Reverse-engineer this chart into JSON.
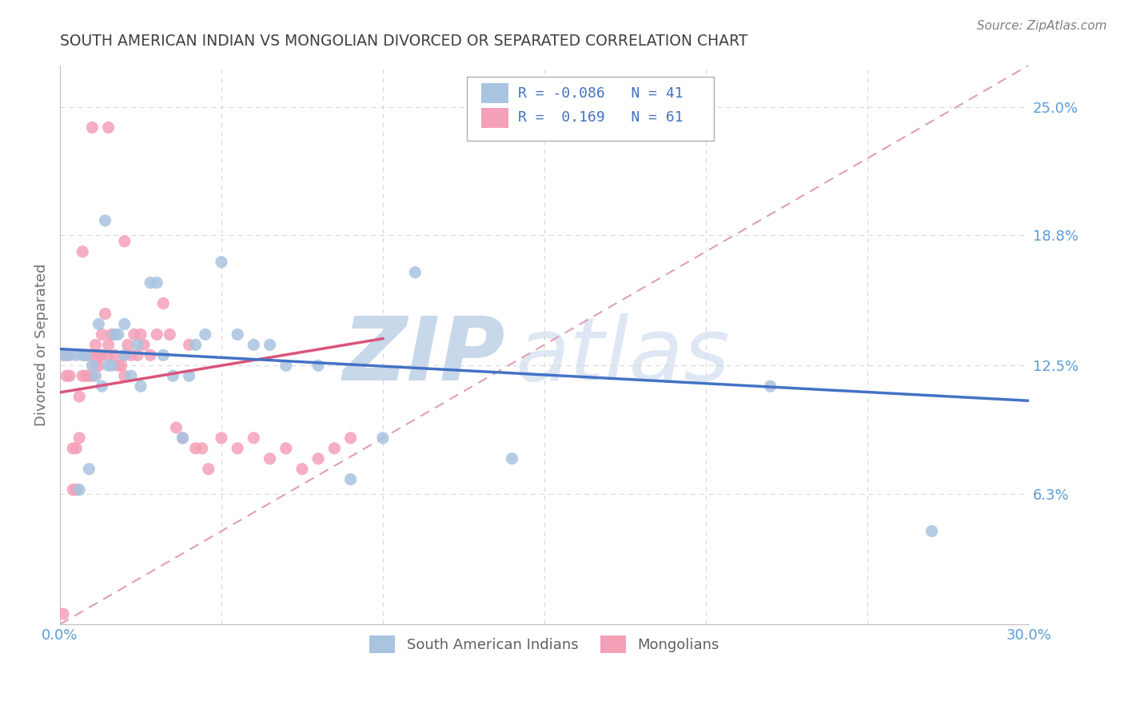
{
  "title": "SOUTH AMERICAN INDIAN VS MONGOLIAN DIVORCED OR SEPARATED CORRELATION CHART",
  "source": "Source: ZipAtlas.com",
  "ylabel": "Divorced or Separated",
  "xlim": [
    0.0,
    0.3
  ],
  "ylim": [
    0.0,
    0.27
  ],
  "xtick_vals": [
    0.0,
    0.05,
    0.1,
    0.15,
    0.2,
    0.25,
    0.3
  ],
  "xtick_labels": [
    "0.0%",
    "",
    "",
    "",
    "",
    "",
    "30.0%"
  ],
  "ytick_vals_right": [
    0.25,
    0.188,
    0.125,
    0.063
  ],
  "ytick_labels_right": [
    "25.0%",
    "18.8%",
    "12.5%",
    "6.3%"
  ],
  "blue_R": "-0.086",
  "blue_N": "41",
  "pink_R": "0.169",
  "pink_N": "61",
  "blue_color": "#a8c4e0",
  "pink_color": "#f4a0b8",
  "blue_line_color": "#4472c4",
  "pink_line_color": "#d9547a",
  "dashed_line_color": "#e0a0b0",
  "title_color": "#404040",
  "axis_color": "#5b9bd5",
  "legend_text_color": "#4472c4",
  "blue_scatter_x": [
    0.001,
    0.003,
    0.005,
    0.006,
    0.007,
    0.008,
    0.009,
    0.01,
    0.011,
    0.012,
    0.013,
    0.014,
    0.015,
    0.016,
    0.017,
    0.018,
    0.02,
    0.02,
    0.022,
    0.024,
    0.025,
    0.028,
    0.03,
    0.032,
    0.035,
    0.038,
    0.04,
    0.042,
    0.045,
    0.05,
    0.055,
    0.06,
    0.065,
    0.07,
    0.08,
    0.09,
    0.1,
    0.11,
    0.14,
    0.22,
    0.27
  ],
  "blue_scatter_y": [
    0.13,
    0.13,
    0.13,
    0.065,
    0.13,
    0.13,
    0.075,
    0.125,
    0.12,
    0.145,
    0.115,
    0.195,
    0.125,
    0.125,
    0.14,
    0.14,
    0.13,
    0.145,
    0.12,
    0.135,
    0.115,
    0.165,
    0.165,
    0.13,
    0.12,
    0.09,
    0.12,
    0.135,
    0.14,
    0.175,
    0.14,
    0.135,
    0.135,
    0.125,
    0.125,
    0.07,
    0.09,
    0.17,
    0.08,
    0.115,
    0.045
  ],
  "pink_scatter_x": [
    0.001,
    0.002,
    0.002,
    0.003,
    0.004,
    0.004,
    0.005,
    0.005,
    0.006,
    0.006,
    0.007,
    0.007,
    0.008,
    0.008,
    0.009,
    0.009,
    0.01,
    0.01,
    0.011,
    0.011,
    0.012,
    0.012,
    0.013,
    0.013,
    0.014,
    0.015,
    0.015,
    0.016,
    0.017,
    0.018,
    0.019,
    0.02,
    0.02,
    0.021,
    0.022,
    0.023,
    0.024,
    0.025,
    0.026,
    0.028,
    0.03,
    0.032,
    0.034,
    0.036,
    0.038,
    0.04,
    0.042,
    0.044,
    0.046,
    0.05,
    0.055,
    0.06,
    0.065,
    0.07,
    0.075,
    0.08,
    0.085,
    0.09,
    0.01,
    0.015,
    0.02
  ],
  "pink_scatter_y": [
    0.005,
    0.12,
    0.13,
    0.12,
    0.065,
    0.085,
    0.065,
    0.085,
    0.09,
    0.11,
    0.12,
    0.18,
    0.12,
    0.13,
    0.12,
    0.13,
    0.12,
    0.13,
    0.125,
    0.135,
    0.125,
    0.13,
    0.13,
    0.14,
    0.15,
    0.13,
    0.135,
    0.14,
    0.13,
    0.125,
    0.125,
    0.12,
    0.13,
    0.135,
    0.13,
    0.14,
    0.13,
    0.14,
    0.135,
    0.13,
    0.14,
    0.155,
    0.14,
    0.095,
    0.09,
    0.135,
    0.085,
    0.085,
    0.075,
    0.09,
    0.085,
    0.09,
    0.08,
    0.085,
    0.075,
    0.08,
    0.085,
    0.09,
    0.24,
    0.24,
    0.185
  ],
  "blue_line_x0": 0.0,
  "blue_line_y0": 0.133,
  "blue_line_x1": 0.3,
  "blue_line_y1": 0.108,
  "pink_line_x0": 0.0,
  "pink_line_y0": 0.112,
  "pink_line_x1": 0.1,
  "pink_line_y1": 0.138
}
